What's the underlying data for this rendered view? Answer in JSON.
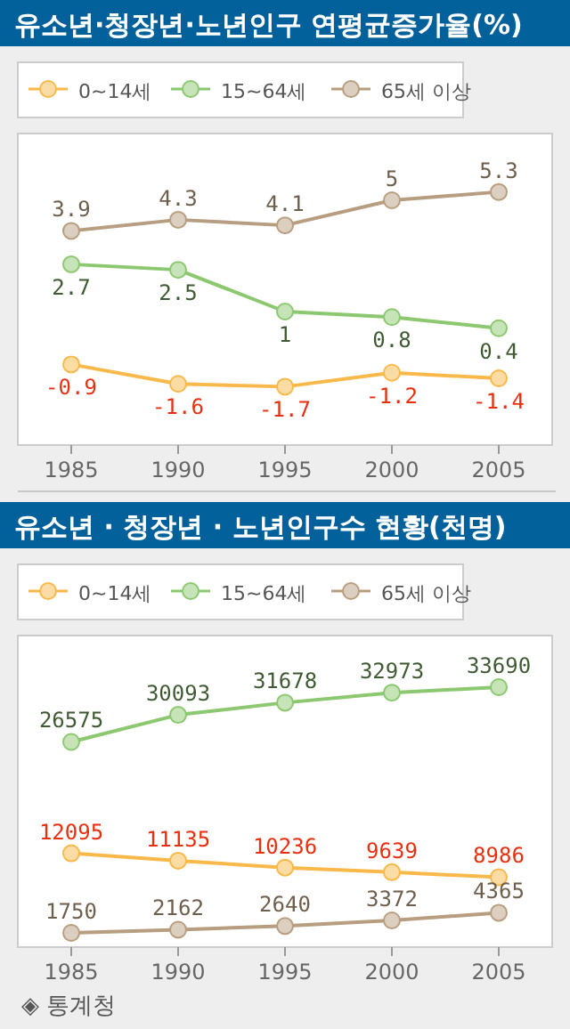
{
  "chart_data": [
    {
      "type": "line",
      "title": "유소년·청장년·노년인구 연평균증가율(%)",
      "categories": [
        "1985",
        "1990",
        "1995",
        "2000",
        "2005"
      ],
      "legend": "top left",
      "marker": "circle",
      "data_labels": true,
      "grid": false,
      "ylim": [
        -3.8,
        7.4
      ],
      "series": [
        {
          "name": "0~14세",
          "color": "#f9b94a",
          "values": [
            -0.9,
            -1.6,
            -1.7,
            -1.2,
            -1.4
          ]
        },
        {
          "name": "15~64세",
          "color": "#8cc870",
          "values": [
            2.7,
            2.5,
            1,
            0.8,
            0.4
          ]
        },
        {
          "name": "65세 이상",
          "color": "#b89e80",
          "values": [
            3.9,
            4.3,
            4.1,
            5,
            5.3
          ]
        }
      ]
    },
    {
      "type": "line",
      "title": "유소년 · 청장년 · 노년인구수 현황(천명)",
      "categories": [
        "1985",
        "1990",
        "1995",
        "2000",
        "2005"
      ],
      "legend": "top left",
      "marker": "circle",
      "data_labels": true,
      "grid": false,
      "ylim": [
        -100,
        40400
      ],
      "series": [
        {
          "name": "0~14세",
          "color": "#f9b94a",
          "values": [
            12095,
            11135,
            10236,
            9639,
            8986
          ]
        },
        {
          "name": "15~64세",
          "color": "#8cc870",
          "values": [
            26575,
            30093,
            31678,
            32973,
            33690
          ]
        },
        {
          "name": "65세 이상",
          "color": "#b89e80",
          "values": [
            1750,
            2162,
            2640,
            3372,
            4365
          ]
        }
      ],
      "annotations": [
        "◈ 통계청"
      ]
    }
  ]
}
